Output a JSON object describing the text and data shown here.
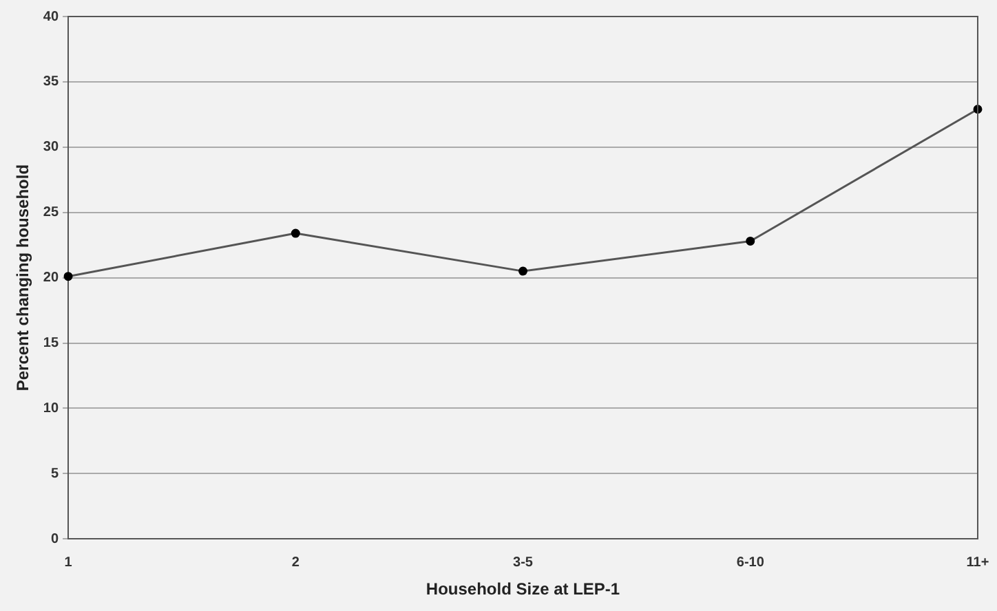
{
  "chart_data": {
    "type": "line",
    "xlabel": "Household Size at LEP-1",
    "ylabel": "Percent changing household",
    "categories": [
      "1",
      "2",
      "3-5",
      "6-10",
      "11+"
    ],
    "series": [
      {
        "color": "#555555",
        "values": [
          20.1,
          23.4,
          20.5,
          22.8,
          32.9
        ]
      }
    ],
    "ylim": [
      0,
      40
    ],
    "yticks": [
      0,
      5,
      10,
      15,
      20,
      25,
      30,
      35,
      40
    ],
    "grid": "y",
    "marker": "circle",
    "line_style": "solid",
    "legend": false
  }
}
